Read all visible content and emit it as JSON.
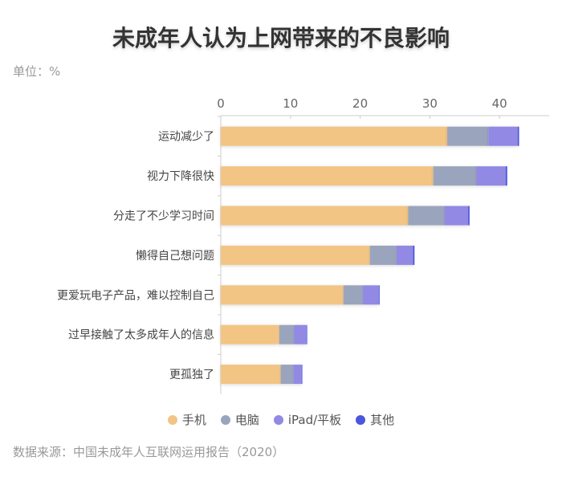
{
  "chart_data": {
    "type": "bar",
    "orientation": "horizontal",
    "stacked": true,
    "title": "未成年人认为上网带来的不良影响",
    "unit_label": "单位：%",
    "source": "数据来源：中国未成年人互联网运用报告（2020）",
    "categories": [
      "运动减少了",
      "视力下降很快",
      "分走了不少学习时间",
      "懒得自己想问题",
      "更爱玩电子产品，难以控制自己",
      "过早接触了太多成年人的信息",
      "更孤独了"
    ],
    "series": [
      {
        "name": "手机",
        "color": "#f2c585",
        "values": [
          32.5,
          30.5,
          26.9,
          21.4,
          17.6,
          8.4,
          8.6
        ]
      },
      {
        "name": "电脑",
        "color": "#9aa5bd",
        "values": [
          5.9,
          6.2,
          5.2,
          3.8,
          2.8,
          2.1,
          1.8
        ]
      },
      {
        "name": "iPad/平板",
        "color": "#9189e4",
        "values": [
          4.2,
          4.2,
          3.4,
          2.4,
          2.3,
          1.8,
          1.2
        ]
      },
      {
        "name": "其他",
        "color": "#4b55dd",
        "values": [
          0.2,
          0.2,
          0.2,
          0.2,
          0.05,
          0.05,
          0.1
        ]
      }
    ],
    "xticks": [
      "0",
      "10",
      "20",
      "30",
      "40"
    ],
    "xlim": [
      0,
      47
    ],
    "legend_position": "bottom"
  }
}
